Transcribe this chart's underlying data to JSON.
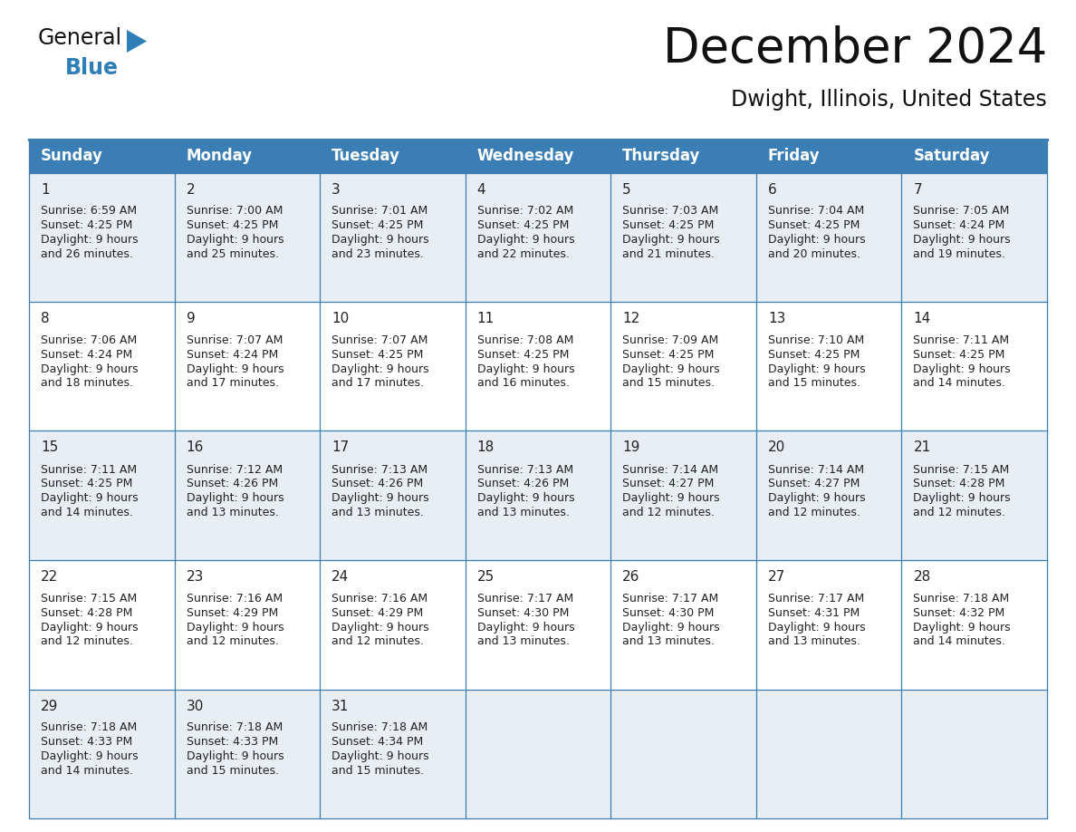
{
  "title": "December 2024",
  "subtitle": "Dwight, Illinois, United States",
  "header_color": "#3A7EB5",
  "header_text_color": "#FFFFFF",
  "day_names": [
    "Sunday",
    "Monday",
    "Tuesday",
    "Wednesday",
    "Thursday",
    "Friday",
    "Saturday"
  ],
  "bg_color": "#FFFFFF",
  "cell_bg_color": "#FFFFFF",
  "cell_alt_bg": "#E8EEF4",
  "grid_color": "#3A7EB5",
  "day_num_color": "#222222",
  "cell_text_color": "#222222",
  "logo_general_color": "#1a1a1a",
  "logo_blue_color": "#2E7EB8",
  "title_fontsize": 38,
  "subtitle_fontsize": 17,
  "header_fontsize": 12,
  "day_num_fontsize": 11,
  "cell_fontsize": 9,
  "weeks": [
    [
      {
        "day": 1,
        "sunrise": "6:59 AM",
        "sunset": "4:25 PM",
        "daylight": "9 hours",
        "daylight2": "and 26 minutes."
      },
      {
        "day": 2,
        "sunrise": "7:00 AM",
        "sunset": "4:25 PM",
        "daylight": "9 hours",
        "daylight2": "and 25 minutes."
      },
      {
        "day": 3,
        "sunrise": "7:01 AM",
        "sunset": "4:25 PM",
        "daylight": "9 hours",
        "daylight2": "and 23 minutes."
      },
      {
        "day": 4,
        "sunrise": "7:02 AM",
        "sunset": "4:25 PM",
        "daylight": "9 hours",
        "daylight2": "and 22 minutes."
      },
      {
        "day": 5,
        "sunrise": "7:03 AM",
        "sunset": "4:25 PM",
        "daylight": "9 hours",
        "daylight2": "and 21 minutes."
      },
      {
        "day": 6,
        "sunrise": "7:04 AM",
        "sunset": "4:25 PM",
        "daylight": "9 hours",
        "daylight2": "and 20 minutes."
      },
      {
        "day": 7,
        "sunrise": "7:05 AM",
        "sunset": "4:24 PM",
        "daylight": "9 hours",
        "daylight2": "and 19 minutes."
      }
    ],
    [
      {
        "day": 8,
        "sunrise": "7:06 AM",
        "sunset": "4:24 PM",
        "daylight": "9 hours",
        "daylight2": "and 18 minutes."
      },
      {
        "day": 9,
        "sunrise": "7:07 AM",
        "sunset": "4:24 PM",
        "daylight": "9 hours",
        "daylight2": "and 17 minutes."
      },
      {
        "day": 10,
        "sunrise": "7:07 AM",
        "sunset": "4:25 PM",
        "daylight": "9 hours",
        "daylight2": "and 17 minutes."
      },
      {
        "day": 11,
        "sunrise": "7:08 AM",
        "sunset": "4:25 PM",
        "daylight": "9 hours",
        "daylight2": "and 16 minutes."
      },
      {
        "day": 12,
        "sunrise": "7:09 AM",
        "sunset": "4:25 PM",
        "daylight": "9 hours",
        "daylight2": "and 15 minutes."
      },
      {
        "day": 13,
        "sunrise": "7:10 AM",
        "sunset": "4:25 PM",
        "daylight": "9 hours",
        "daylight2": "and 15 minutes."
      },
      {
        "day": 14,
        "sunrise": "7:11 AM",
        "sunset": "4:25 PM",
        "daylight": "9 hours",
        "daylight2": "and 14 minutes."
      }
    ],
    [
      {
        "day": 15,
        "sunrise": "7:11 AM",
        "sunset": "4:25 PM",
        "daylight": "9 hours",
        "daylight2": "and 14 minutes."
      },
      {
        "day": 16,
        "sunrise": "7:12 AM",
        "sunset": "4:26 PM",
        "daylight": "9 hours",
        "daylight2": "and 13 minutes."
      },
      {
        "day": 17,
        "sunrise": "7:13 AM",
        "sunset": "4:26 PM",
        "daylight": "9 hours",
        "daylight2": "and 13 minutes."
      },
      {
        "day": 18,
        "sunrise": "7:13 AM",
        "sunset": "4:26 PM",
        "daylight": "9 hours",
        "daylight2": "and 13 minutes."
      },
      {
        "day": 19,
        "sunrise": "7:14 AM",
        "sunset": "4:27 PM",
        "daylight": "9 hours",
        "daylight2": "and 12 minutes."
      },
      {
        "day": 20,
        "sunrise": "7:14 AM",
        "sunset": "4:27 PM",
        "daylight": "9 hours",
        "daylight2": "and 12 minutes."
      },
      {
        "day": 21,
        "sunrise": "7:15 AM",
        "sunset": "4:28 PM",
        "daylight": "9 hours",
        "daylight2": "and 12 minutes."
      }
    ],
    [
      {
        "day": 22,
        "sunrise": "7:15 AM",
        "sunset": "4:28 PM",
        "daylight": "9 hours",
        "daylight2": "and 12 minutes."
      },
      {
        "day": 23,
        "sunrise": "7:16 AM",
        "sunset": "4:29 PM",
        "daylight": "9 hours",
        "daylight2": "and 12 minutes."
      },
      {
        "day": 24,
        "sunrise": "7:16 AM",
        "sunset": "4:29 PM",
        "daylight": "9 hours",
        "daylight2": "and 12 minutes."
      },
      {
        "day": 25,
        "sunrise": "7:17 AM",
        "sunset": "4:30 PM",
        "daylight": "9 hours",
        "daylight2": "and 13 minutes."
      },
      {
        "day": 26,
        "sunrise": "7:17 AM",
        "sunset": "4:30 PM",
        "daylight": "9 hours",
        "daylight2": "and 13 minutes."
      },
      {
        "day": 27,
        "sunrise": "7:17 AM",
        "sunset": "4:31 PM",
        "daylight": "9 hours",
        "daylight2": "and 13 minutes."
      },
      {
        "day": 28,
        "sunrise": "7:18 AM",
        "sunset": "4:32 PM",
        "daylight": "9 hours",
        "daylight2": "and 14 minutes."
      }
    ],
    [
      {
        "day": 29,
        "sunrise": "7:18 AM",
        "sunset": "4:33 PM",
        "daylight": "9 hours",
        "daylight2": "and 14 minutes."
      },
      {
        "day": 30,
        "sunrise": "7:18 AM",
        "sunset": "4:33 PM",
        "daylight": "9 hours",
        "daylight2": "and 15 minutes."
      },
      {
        "day": 31,
        "sunrise": "7:18 AM",
        "sunset": "4:34 PM",
        "daylight": "9 hours",
        "daylight2": "and 15 minutes."
      },
      null,
      null,
      null,
      null
    ]
  ]
}
